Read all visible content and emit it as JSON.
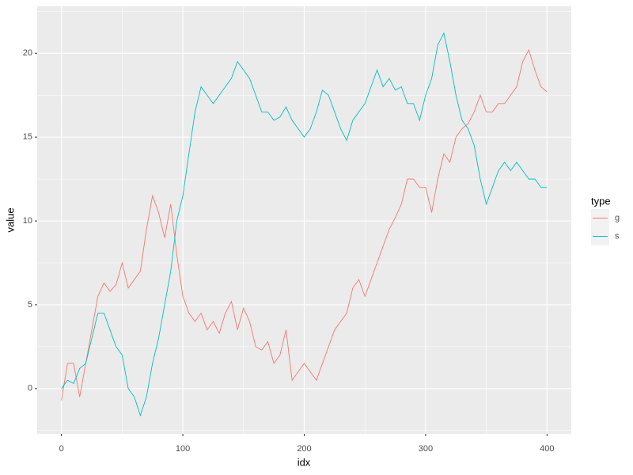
{
  "chart_data": {
    "type": "line",
    "x_label": "idx",
    "y_label": "value",
    "x": [
      0,
      5,
      10,
      15,
      20,
      25,
      30,
      35,
      40,
      45,
      50,
      55,
      60,
      65,
      70,
      75,
      80,
      85,
      90,
      95,
      100,
      105,
      110,
      115,
      120,
      125,
      130,
      135,
      140,
      145,
      150,
      155,
      160,
      165,
      170,
      175,
      180,
      185,
      190,
      195,
      200,
      205,
      210,
      215,
      220,
      225,
      230,
      235,
      240,
      245,
      250,
      255,
      260,
      265,
      270,
      275,
      280,
      285,
      290,
      295,
      300,
      305,
      310,
      315,
      320,
      325,
      330,
      335,
      340,
      345,
      350,
      355,
      360,
      365,
      370,
      375,
      380,
      385,
      390,
      395,
      400
    ],
    "series": [
      {
        "name": "g",
        "color": "#F8766D",
        "values": [
          -0.7,
          1.5,
          1.5,
          -0.5,
          1.5,
          3.5,
          5.5,
          6.3,
          5.8,
          6.2,
          7.5,
          6,
          6.5,
          7,
          9.5,
          11.5,
          10.5,
          9,
          11,
          8,
          5.5,
          4.5,
          4,
          4.5,
          3.5,
          4,
          3.3,
          4.5,
          5.2,
          3.5,
          4.8,
          4,
          2.5,
          2.3,
          2.8,
          1.5,
          2,
          3.5,
          0.5,
          1,
          1.5,
          1,
          0.5,
          1.5,
          2.5,
          3.5,
          4,
          4.5,
          6,
          6.5,
          5.5,
          6.5,
          7.5,
          8.5,
          9.5,
          10.2,
          11,
          12.5,
          12.5,
          12,
          12,
          10.5,
          12.5,
          14,
          13.5,
          15,
          15.5,
          15.8,
          16.5,
          17.5,
          16.5,
          16.5,
          17,
          17,
          17.5,
          18,
          19.5,
          20.2,
          19,
          18,
          17.7
        ]
      },
      {
        "name": "s",
        "color": "#00BFC4",
        "values": [
          0,
          0.5,
          0.3,
          1.2,
          1.5,
          3,
          4.5,
          4.5,
          3.5,
          2.5,
          2,
          0,
          -0.5,
          -1.6,
          -0.5,
          1.5,
          3,
          5,
          7,
          10,
          11.5,
          14,
          16.5,
          18,
          17.5,
          17,
          17.5,
          18,
          18.5,
          19.5,
          19,
          18.5,
          17.5,
          16.5,
          16.5,
          16,
          16.2,
          16.8,
          16,
          15.5,
          15,
          15.5,
          16.5,
          17.8,
          17.5,
          16.5,
          15.5,
          14.8,
          16,
          16.5,
          17,
          18,
          19,
          18,
          18.5,
          17.8,
          18,
          17,
          17,
          16,
          17.5,
          18.5,
          20.5,
          21.2,
          19.5,
          17.5,
          16,
          15.5,
          14.5,
          12.5,
          11,
          12,
          13,
          13.5,
          13,
          13.5,
          13,
          12.5,
          12.5,
          12,
          12
        ]
      }
    ],
    "legend_title": "type",
    "xlim": [
      -20,
      420
    ],
    "ylim": [
      -2.7,
      22.8
    ],
    "xticks": [
      0,
      100,
      200,
      300,
      400
    ],
    "yticks": [
      0,
      5,
      10,
      15,
      20
    ],
    "grid": true,
    "legend": "right"
  }
}
